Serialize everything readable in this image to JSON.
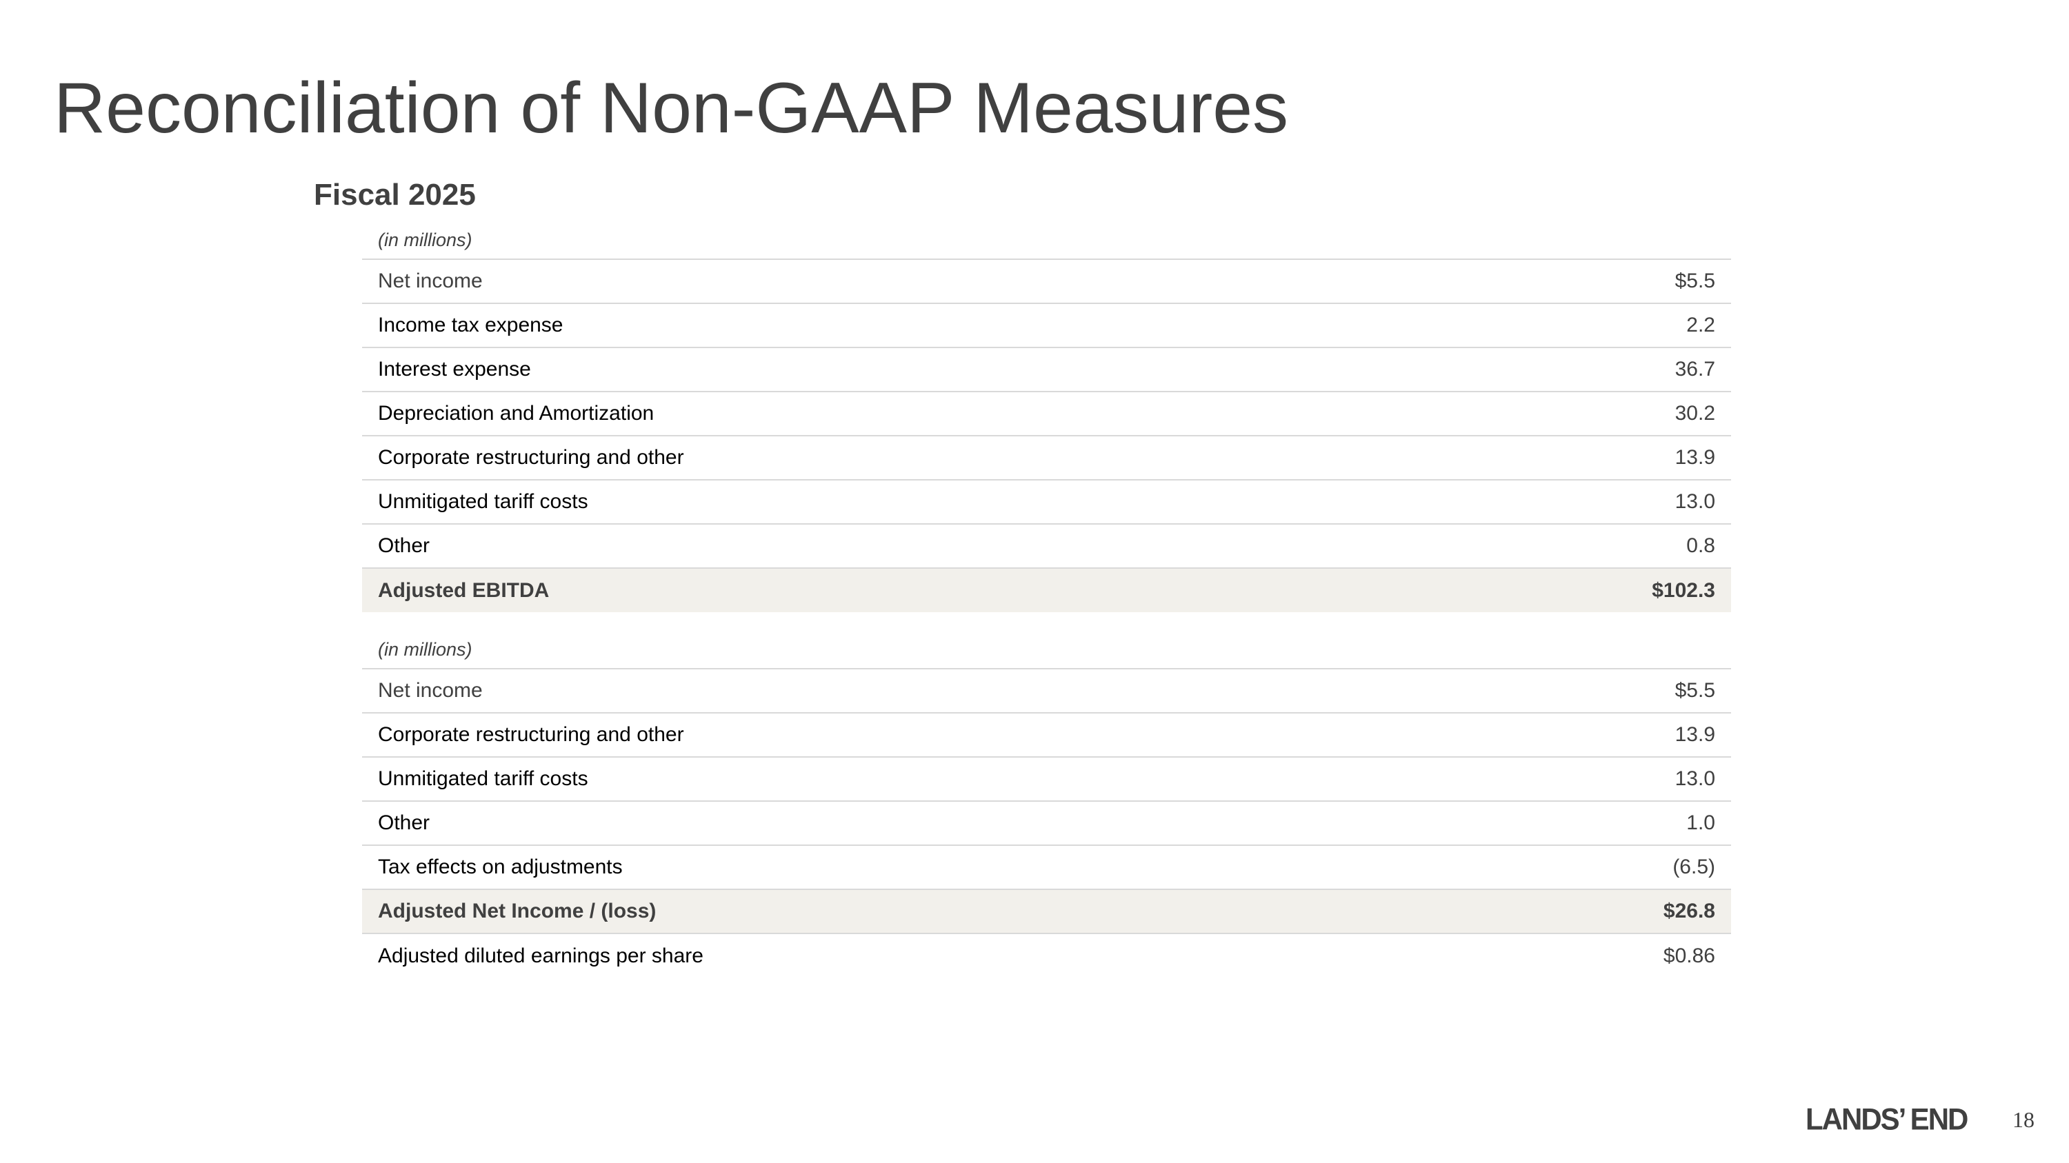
{
  "title": "Reconciliation of Non-GAAP Measures",
  "subtitle": "Fiscal 2025",
  "adjusted_ebitda_table": {
    "units": "(in millions)",
    "rows": [
      {
        "label": "Net income",
        "value": "$5.5"
      },
      {
        "label": "Income tax expense",
        "value": "2.2"
      },
      {
        "label": "Interest expense",
        "value": "36.7"
      },
      {
        "label": "Depreciation and Amortization",
        "value": "30.2"
      },
      {
        "label": "Corporate restructuring and other",
        "value": "13.9"
      },
      {
        "label": "Unmitigated tariff costs",
        "value": "13.0"
      },
      {
        "label": "Other",
        "value": "0.8"
      }
    ],
    "total": {
      "label": "Adjusted EBITDA",
      "value": "$102.3"
    }
  },
  "adjusted_net_income_table": {
    "units": "(in millions)",
    "rows": [
      {
        "label": "Net income",
        "value": "$5.5"
      },
      {
        "label": "Corporate restructuring and other",
        "value": "13.9"
      },
      {
        "label": "Unmitigated tariff costs",
        "value": "13.0"
      },
      {
        "label": "Other",
        "value": "1.0"
      },
      {
        "label": "Tax effects on adjustments",
        "value": "(6.5)"
      }
    ],
    "total": {
      "label": "Adjusted Net Income / (loss)",
      "value": "$26.8"
    },
    "footer_row": {
      "label": "Adjusted diluted earnings per share",
      "value": "$0.86"
    }
  },
  "footer": {
    "logo_text": "LANDS’ END",
    "page_number": "18"
  }
}
